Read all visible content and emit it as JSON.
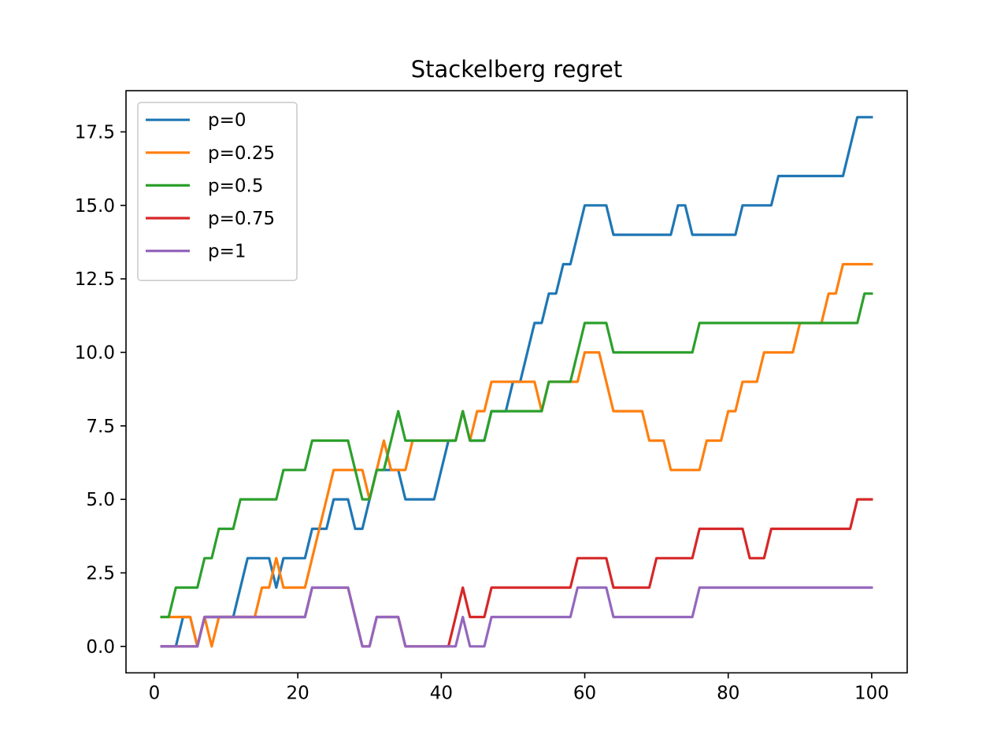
{
  "chart_data": {
    "type": "line",
    "title": "Stackelberg regret",
    "xlabel": "",
    "ylabel": "",
    "xlim": [
      -3.95,
      104.95
    ],
    "ylim": [
      -0.9,
      18.9
    ],
    "xticks": [
      0,
      20,
      40,
      60,
      80,
      100
    ],
    "xtick_labels": [
      "0",
      "20",
      "40",
      "60",
      "80",
      "100"
    ],
    "yticks": [
      0.0,
      2.5,
      5.0,
      7.5,
      10.0,
      12.5,
      15.0,
      17.5
    ],
    "ytick_labels": [
      "0.0",
      "2.5",
      "5.0",
      "7.5",
      "10.0",
      "12.5",
      "15.0",
      "17.5"
    ],
    "grid": false,
    "legend_position": "upper-left",
    "series": [
      {
        "name": "p=0",
        "color": "#1f77b4",
        "values": [
          0,
          0,
          0,
          1,
          1,
          0,
          1,
          1,
          1,
          1,
          1,
          2,
          3,
          3,
          3,
          3,
          2,
          3,
          3,
          3,
          3,
          4,
          4,
          4,
          5,
          5,
          5,
          4,
          4,
          5,
          6,
          6,
          6,
          6,
          5,
          5,
          5,
          5,
          5,
          6,
          7,
          7,
          8,
          7,
          7,
          7,
          8,
          8,
          8,
          9,
          9,
          10,
          11,
          11,
          12,
          12,
          13,
          13,
          14,
          15,
          15,
          15,
          15,
          14,
          14,
          14,
          14,
          14,
          14,
          14,
          14,
          14,
          15,
          15,
          14,
          14,
          14,
          14,
          14,
          14,
          14,
          15,
          15,
          15,
          15,
          15,
          16,
          16,
          16,
          16,
          16,
          16,
          16,
          16,
          16,
          16,
          17,
          18,
          18,
          18
        ]
      },
      {
        "name": "p=0.25",
        "color": "#ff7f0e",
        "values": [
          1,
          1,
          1,
          1,
          1,
          0,
          1,
          0,
          1,
          1,
          1,
          1,
          1,
          1,
          2,
          2,
          3,
          2,
          2,
          2,
          2,
          3,
          4,
          5,
          6,
          6,
          6,
          6,
          6,
          5,
          6,
          7,
          6,
          6,
          6,
          7,
          7,
          7,
          7,
          7,
          7,
          7,
          8,
          7,
          8,
          8,
          9,
          9,
          9,
          9,
          9,
          9,
          9,
          8,
          9,
          9,
          9,
          9,
          9,
          10,
          10,
          10,
          9,
          8,
          8,
          8,
          8,
          8,
          7,
          7,
          7,
          6,
          6,
          6,
          6,
          6,
          7,
          7,
          7,
          8,
          8,
          9,
          9,
          9,
          10,
          10,
          10,
          10,
          10,
          11,
          11,
          11,
          11,
          12,
          12,
          13,
          13,
          13,
          13,
          13
        ]
      },
      {
        "name": "p=0.5",
        "color": "#2ca02c",
        "values": [
          1,
          1,
          2,
          2,
          2,
          2,
          3,
          3,
          4,
          4,
          4,
          5,
          5,
          5,
          5,
          5,
          5,
          6,
          6,
          6,
          6,
          7,
          7,
          7,
          7,
          7,
          7,
          6,
          5,
          5,
          6,
          6,
          7,
          8,
          7,
          7,
          7,
          7,
          7,
          7,
          7,
          7,
          8,
          7,
          7,
          7,
          8,
          8,
          8,
          8,
          8,
          8,
          8,
          8,
          9,
          9,
          9,
          9,
          10,
          11,
          11,
          11,
          11,
          10,
          10,
          10,
          10,
          10,
          10,
          10,
          10,
          10,
          10,
          10,
          10,
          11,
          11,
          11,
          11,
          11,
          11,
          11,
          11,
          11,
          11,
          11,
          11,
          11,
          11,
          11,
          11,
          11,
          11,
          11,
          11,
          11,
          11,
          11,
          12,
          12
        ]
      },
      {
        "name": "p=0.75",
        "color": "#d62728",
        "values": [
          0,
          0,
          0,
          0,
          0,
          0,
          1,
          1,
          1,
          1,
          1,
          1,
          1,
          1,
          1,
          1,
          1,
          1,
          1,
          1,
          1,
          2,
          2,
          2,
          2,
          2,
          2,
          1,
          0,
          0,
          1,
          1,
          1,
          1,
          0,
          0,
          0,
          0,
          0,
          0,
          0,
          1,
          2,
          1,
          1,
          1,
          2,
          2,
          2,
          2,
          2,
          2,
          2,
          2,
          2,
          2,
          2,
          2,
          3,
          3,
          3,
          3,
          3,
          2,
          2,
          2,
          2,
          2,
          2,
          3,
          3,
          3,
          3,
          3,
          3,
          4,
          4,
          4,
          4,
          4,
          4,
          4,
          3,
          3,
          3,
          4,
          4,
          4,
          4,
          4,
          4,
          4,
          4,
          4,
          4,
          4,
          4,
          5,
          5,
          5
        ]
      },
      {
        "name": "p=1",
        "color": "#9467bd",
        "values": [
          0,
          0,
          0,
          0,
          0,
          0,
          1,
          1,
          1,
          1,
          1,
          1,
          1,
          1,
          1,
          1,
          1,
          1,
          1,
          1,
          1,
          2,
          2,
          2,
          2,
          2,
          2,
          1,
          0,
          0,
          1,
          1,
          1,
          1,
          0,
          0,
          0,
          0,
          0,
          0,
          0,
          0,
          1,
          0,
          0,
          0,
          1,
          1,
          1,
          1,
          1,
          1,
          1,
          1,
          1,
          1,
          1,
          1,
          2,
          2,
          2,
          2,
          2,
          1,
          1,
          1,
          1,
          1,
          1,
          1,
          1,
          1,
          1,
          1,
          1,
          2,
          2,
          2,
          2,
          2,
          2,
          2,
          2,
          2,
          2,
          2,
          2,
          2,
          2,
          2,
          2,
          2,
          2,
          2,
          2,
          2,
          2,
          2,
          2,
          2
        ]
      }
    ]
  }
}
